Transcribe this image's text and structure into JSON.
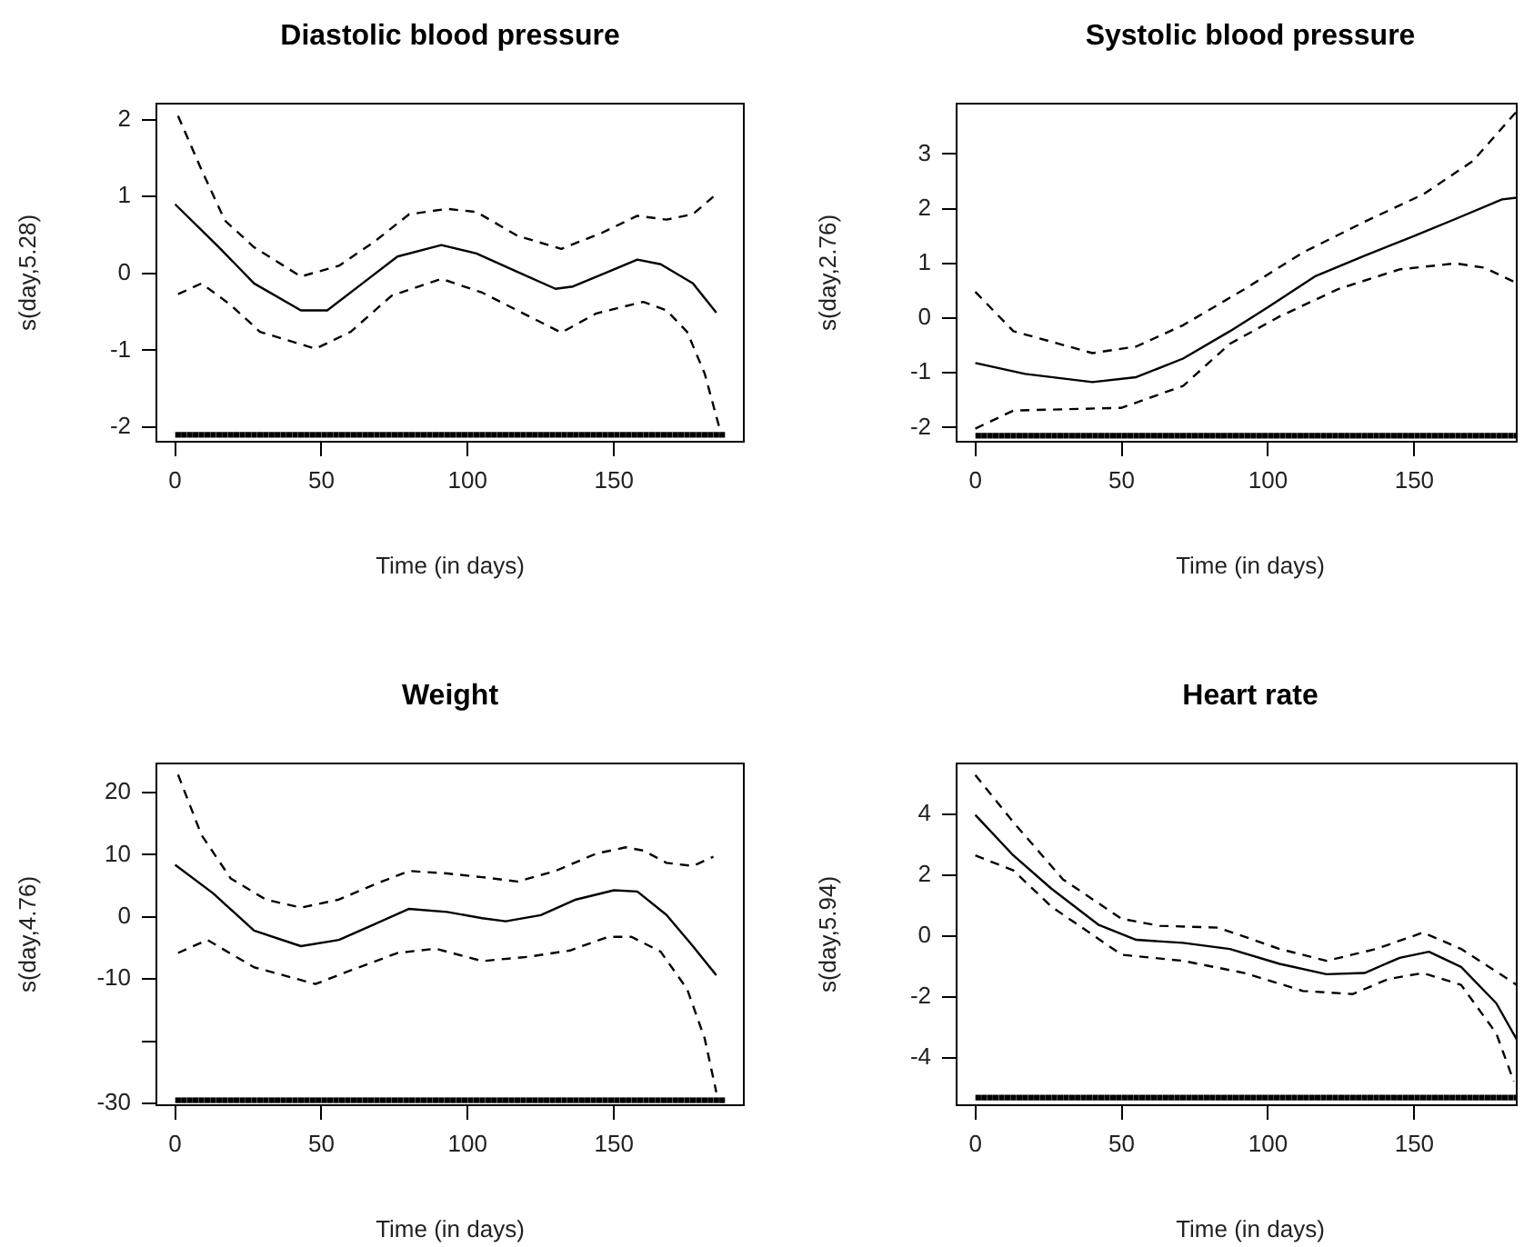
{
  "chart_data": [
    {
      "type": "line",
      "title": "Diastolic blood pressure",
      "xlabel": "Time (in days)",
      "ylabel": "s(day,5.28)",
      "xlim": [
        -6.4,
        194.4
      ],
      "xticks": [
        0,
        50,
        100,
        150
      ],
      "ylim": [
        -2.19,
        2.21
      ],
      "yticks": [
        -2,
        -1,
        0,
        1,
        2
      ],
      "grid": false,
      "legend": false,
      "series": [
        {
          "color": "#000000",
          "line_style": "solid",
          "x": [
            0,
            15,
            27,
            43,
            52,
            64,
            76,
            91,
            103,
            117,
            130,
            136,
            148,
            158,
            166,
            177,
            185
          ],
          "values": [
            0.9,
            0.34,
            -0.13,
            -0.48,
            -0.48,
            -0.13,
            0.22,
            0.37,
            0.26,
            0.02,
            -0.2,
            -0.17,
            0.02,
            0.18,
            0.12,
            -0.13,
            -0.51
          ]
        },
        {
          "color": "#000000",
          "line_style": "dashed",
          "x": [
            1,
            9,
            17,
            27,
            43,
            56,
            68,
            80,
            93,
            103,
            117,
            132,
            146,
            158,
            168,
            177,
            184
          ],
          "values": [
            2.05,
            1.35,
            0.69,
            0.34,
            -0.04,
            0.1,
            0.41,
            0.77,
            0.84,
            0.8,
            0.49,
            0.32,
            0.53,
            0.75,
            0.7,
            0.77,
            1.0
          ]
        },
        {
          "color": "#000000",
          "line_style": "dashed",
          "x": [
            1,
            9,
            19,
            29,
            48,
            60,
            74,
            91,
            105,
            119,
            132,
            144,
            160,
            168,
            175,
            181,
            186
          ],
          "values": [
            -0.27,
            -0.13,
            -0.41,
            -0.76,
            -0.98,
            -0.76,
            -0.29,
            -0.07,
            -0.25,
            -0.52,
            -0.77,
            -0.52,
            -0.37,
            -0.48,
            -0.76,
            -1.3,
            -2.0
          ]
        },
        {
          "type": "scatter",
          "color": "#000000",
          "x": [
            1,
            3,
            5,
            7,
            9,
            11,
            13,
            15,
            17,
            19,
            21,
            23,
            25,
            27,
            29,
            31,
            33,
            35,
            37,
            39,
            41,
            43,
            45,
            47,
            49,
            51,
            53,
            55,
            57,
            59,
            61,
            63,
            65,
            67,
            69,
            71,
            73,
            75,
            77,
            79,
            81,
            83,
            85,
            87,
            89,
            91,
            93,
            95,
            97,
            99,
            101,
            103,
            105,
            107,
            109,
            111,
            113,
            115,
            117,
            119,
            121,
            123,
            125,
            127,
            129,
            131,
            133,
            135,
            137,
            139,
            141,
            143,
            145,
            147,
            149,
            151,
            153,
            155,
            157,
            159,
            161,
            163,
            165,
            167,
            169,
            171,
            173,
            175,
            177,
            179,
            181,
            183,
            185,
            187
          ],
          "values": [
            -2.1,
            -2.1,
            -2.1,
            -2.1,
            -2.1,
            -2.1,
            -2.1,
            -2.1,
            -2.1,
            -2.1,
            -2.1,
            -2.1,
            -2.1,
            -2.1,
            -2.1,
            -2.1,
            -2.1,
            -2.1,
            -2.1,
            -2.1,
            -2.1,
            -2.1,
            -2.1,
            -2.1,
            -2.1,
            -2.1,
            -2.1,
            -2.1,
            -2.1,
            -2.1,
            -2.1,
            -2.1,
            -2.1,
            -2.1,
            -2.1,
            -2.1,
            -2.1,
            -2.1,
            -2.1,
            -2.1,
            -2.1,
            -2.1,
            -2.1,
            -2.1,
            -2.1,
            -2.1,
            -2.1,
            -2.1,
            -2.1,
            -2.1,
            -2.1,
            -2.1,
            -2.1,
            -2.1,
            -2.1,
            -2.1,
            -2.1,
            -2.1,
            -2.1,
            -2.1,
            -2.1,
            -2.1,
            -2.1,
            -2.1,
            -2.1,
            -2.1,
            -2.1,
            -2.1,
            -2.1,
            -2.1,
            -2.1,
            -2.1,
            -2.1,
            -2.1,
            -2.1,
            -2.1,
            -2.1,
            -2.1,
            -2.1,
            -2.1,
            -2.1,
            -2.1,
            -2.1,
            -2.1,
            -2.1,
            -2.1,
            -2.1,
            -2.1,
            -2.1,
            -2.1,
            -2.1,
            -2.1,
            -2.1,
            -2.1
          ]
        }
      ]
    },
    {
      "type": "line",
      "title": "Systolic blood pressure",
      "xlabel": "Time (in days)",
      "ylabel": "s(day,2.76)",
      "xlim": [
        -6.4,
        185
      ],
      "xticks": [
        0,
        50,
        100,
        150
      ],
      "ylim": [
        -2.26,
        3.92
      ],
      "yticks": [
        -2,
        -1,
        0,
        1,
        2,
        3
      ],
      "grid": false,
      "legend": false,
      "series": [
        {
          "color": "#000000",
          "line_style": "solid",
          "x": [
            0,
            17,
            40,
            55,
            71,
            87,
            100,
            116,
            133,
            149,
            164,
            180,
            185
          ],
          "values": [
            -0.82,
            -1.02,
            -1.17,
            -1.08,
            -0.74,
            -0.24,
            0.2,
            0.76,
            1.14,
            1.48,
            1.81,
            2.17,
            2.2
          ]
        },
        {
          "color": "#000000",
          "line_style": "dashed",
          "x": [
            0,
            13,
            40,
            55,
            71,
            92,
            112,
            133,
            153,
            170,
            185
          ],
          "values": [
            0.48,
            -0.24,
            -0.64,
            -0.52,
            -0.13,
            0.53,
            1.2,
            1.76,
            2.26,
            2.87,
            3.78
          ]
        },
        {
          "color": "#000000",
          "line_style": "dashed",
          "x": [
            0,
            13,
            50,
            71,
            87,
            104,
            124,
            145,
            164,
            174,
            185
          ],
          "values": [
            -2.02,
            -1.69,
            -1.64,
            -1.24,
            -0.47,
            0.03,
            0.53,
            0.89,
            1.0,
            0.92,
            0.64
          ]
        },
        {
          "type": "scatter",
          "color": "#000000",
          "x": [
            1,
            3,
            5,
            7,
            9,
            11,
            13,
            15,
            17,
            19,
            21,
            23,
            25,
            27,
            29,
            31,
            33,
            35,
            37,
            39,
            41,
            43,
            45,
            47,
            49,
            51,
            53,
            55,
            57,
            59,
            61,
            63,
            65,
            67,
            69,
            71,
            73,
            75,
            77,
            79,
            81,
            83,
            85,
            87,
            89,
            91,
            93,
            95,
            97,
            99,
            101,
            103,
            105,
            107,
            109,
            111,
            113,
            115,
            117,
            119,
            121,
            123,
            125,
            127,
            129,
            131,
            133,
            135,
            137,
            139,
            141,
            143,
            145,
            147,
            149,
            151,
            153,
            155,
            157,
            159,
            161,
            163,
            165,
            167,
            169,
            171,
            173,
            175,
            177,
            179,
            181,
            183,
            185
          ],
          "values": [
            -2.15,
            -2.15,
            -2.15,
            -2.15,
            -2.15,
            -2.15,
            -2.15,
            -2.15,
            -2.15,
            -2.15,
            -2.15,
            -2.15,
            -2.15,
            -2.15,
            -2.15,
            -2.15,
            -2.15,
            -2.15,
            -2.15,
            -2.15,
            -2.15,
            -2.15,
            -2.15,
            -2.15,
            -2.15,
            -2.15,
            -2.15,
            -2.15,
            -2.15,
            -2.15,
            -2.15,
            -2.15,
            -2.15,
            -2.15,
            -2.15,
            -2.15,
            -2.15,
            -2.15,
            -2.15,
            -2.15,
            -2.15,
            -2.15,
            -2.15,
            -2.15,
            -2.15,
            -2.15,
            -2.15,
            -2.15,
            -2.15,
            -2.15,
            -2.15,
            -2.15,
            -2.15,
            -2.15,
            -2.15,
            -2.15,
            -2.15,
            -2.15,
            -2.15,
            -2.15,
            -2.15,
            -2.15,
            -2.15,
            -2.15,
            -2.15,
            -2.15,
            -2.15,
            -2.15,
            -2.15,
            -2.15,
            -2.15,
            -2.15,
            -2.15,
            -2.15,
            -2.15,
            -2.15,
            -2.15,
            -2.15,
            -2.15,
            -2.15,
            -2.15,
            -2.15,
            -2.15,
            -2.15,
            -2.15,
            -2.15,
            -2.15,
            -2.15,
            -2.15,
            -2.15,
            -2.15,
            -2.15,
            -2.15
          ]
        }
      ]
    },
    {
      "type": "line",
      "title": "Weight",
      "xlabel": "Time (in days)",
      "ylabel": "s(day,4.76)",
      "xlim": [
        -6.4,
        194.4
      ],
      "xticks": [
        0,
        50,
        100,
        150
      ],
      "ylim": [
        -30.3,
        24.7
      ],
      "yticks": [
        -30,
        {
          "value": -20,
          "label": null
        },
        -10,
        0,
        10,
        20
      ],
      "grid": false,
      "legend": false,
      "series": [
        {
          "color": "#000000",
          "line_style": "solid",
          "x": [
            0,
            13,
            27,
            43,
            56,
            68,
            80,
            93,
            105,
            113,
            125,
            137,
            150,
            158,
            168,
            177,
            185
          ],
          "values": [
            8.4,
            3.8,
            -2.2,
            -4.7,
            -3.7,
            -1.2,
            1.3,
            0.8,
            -0.2,
            -0.7,
            0.3,
            2.8,
            4.3,
            4.1,
            0.3,
            -4.7,
            -9.4
          ]
        },
        {
          "color": "#000000",
          "line_style": "dashed",
          "x": [
            1,
            9,
            19,
            31,
            43,
            56,
            68,
            80,
            93,
            105,
            117,
            130,
            144,
            154,
            160,
            168,
            177,
            184
          ],
          "values": [
            22.9,
            13.2,
            6.2,
            2.8,
            1.5,
            2.8,
            5.2,
            7.4,
            7.0,
            6.4,
            5.7,
            7.4,
            10.2,
            11.2,
            10.7,
            8.7,
            8.2,
            9.7
          ]
        },
        {
          "color": "#000000",
          "line_style": "dashed",
          "x": [
            1,
            11,
            27,
            48,
            60,
            76,
            89,
            105,
            121,
            135,
            148,
            156,
            166,
            175,
            181,
            185
          ],
          "values": [
            -5.8,
            -3.7,
            -8.1,
            -10.8,
            -8.6,
            -5.8,
            -5.1,
            -7.1,
            -6.4,
            -5.4,
            -3.2,
            -3.2,
            -5.6,
            -11.6,
            -19.5,
            -28.2
          ]
        },
        {
          "type": "scatter",
          "color": "#000000",
          "x": [
            1,
            3,
            5,
            7,
            9,
            11,
            13,
            15,
            17,
            19,
            21,
            23,
            25,
            27,
            29,
            31,
            33,
            35,
            37,
            39,
            41,
            43,
            45,
            47,
            49,
            51,
            53,
            55,
            57,
            59,
            61,
            63,
            65,
            67,
            69,
            71,
            73,
            75,
            77,
            79,
            81,
            83,
            85,
            87,
            89,
            91,
            93,
            95,
            97,
            99,
            101,
            103,
            105,
            107,
            109,
            111,
            113,
            115,
            117,
            119,
            121,
            123,
            125,
            127,
            129,
            131,
            133,
            135,
            137,
            139,
            141,
            143,
            145,
            147,
            149,
            151,
            153,
            155,
            157,
            159,
            161,
            163,
            165,
            167,
            169,
            171,
            173,
            175,
            177,
            179,
            181,
            183,
            185,
            187
          ],
          "values": [
            -29.5,
            -29.5,
            -29.5,
            -29.5,
            -29.5,
            -29.5,
            -29.5,
            -29.5,
            -29.5,
            -29.5,
            -29.5,
            -29.5,
            -29.5,
            -29.5,
            -29.5,
            -29.5,
            -29.5,
            -29.5,
            -29.5,
            -29.5,
            -29.5,
            -29.5,
            -29.5,
            -29.5,
            -29.5,
            -29.5,
            -29.5,
            -29.5,
            -29.5,
            -29.5,
            -29.5,
            -29.5,
            -29.5,
            -29.5,
            -29.5,
            -29.5,
            -29.5,
            -29.5,
            -29.5,
            -29.5,
            -29.5,
            -29.5,
            -29.5,
            -29.5,
            -29.5,
            -29.5,
            -29.5,
            -29.5,
            -29.5,
            -29.5,
            -29.5,
            -29.5,
            -29.5,
            -29.5,
            -29.5,
            -29.5,
            -29.5,
            -29.5,
            -29.5,
            -29.5,
            -29.5,
            -29.5,
            -29.5,
            -29.5,
            -29.5,
            -29.5,
            -29.5,
            -29.5,
            -29.5,
            -29.5,
            -29.5,
            -29.5,
            -29.5,
            -29.5,
            -29.5,
            -29.5,
            -29.5,
            -29.5,
            -29.5,
            -29.5,
            -29.5,
            -29.5,
            -29.5,
            -29.5,
            -29.5,
            -29.5,
            -29.5,
            -29.5,
            -29.5,
            -29.5,
            -29.5,
            -29.5,
            -29.5,
            -29.5
          ]
        }
      ]
    },
    {
      "type": "line",
      "title": "Heart rate",
      "xlabel": "Time (in days)",
      "ylabel": "s(day,5.94)",
      "xlim": [
        -6.4,
        185
      ],
      "xticks": [
        0,
        50,
        100,
        150
      ],
      "ylim": [
        -5.55,
        5.67
      ],
      "yticks": [
        -4,
        -2,
        0,
        2,
        4
      ],
      "grid": false,
      "legend": false,
      "series": [
        {
          "color": "#000000",
          "line_style": "solid",
          "x": [
            0,
            13,
            26,
            42,
            55,
            71,
            87,
            104,
            120,
            133,
            145,
            155,
            166,
            178,
            185
          ],
          "values": [
            3.98,
            2.65,
            1.56,
            0.38,
            -0.12,
            -0.22,
            -0.42,
            -0.91,
            -1.25,
            -1.21,
            -0.71,
            -0.51,
            -1.01,
            -2.2,
            -3.39
          ]
        },
        {
          "color": "#000000",
          "line_style": "dashed",
          "x": [
            0,
            13,
            30,
            50,
            63,
            83,
            104,
            120,
            137,
            153,
            166,
            182,
            185
          ],
          "values": [
            5.29,
            3.74,
            1.86,
            0.57,
            0.34,
            0.28,
            -0.42,
            -0.81,
            -0.42,
            0.12,
            -0.42,
            -1.41,
            -1.6
          ]
        },
        {
          "color": "#000000",
          "line_style": "dashed",
          "x": [
            0,
            13,
            26,
            50,
            71,
            92,
            112,
            129,
            141,
            153,
            166,
            178,
            184
          ],
          "values": [
            2.65,
            2.16,
            0.97,
            -0.61,
            -0.81,
            -1.21,
            -1.8,
            -1.9,
            -1.41,
            -1.21,
            -1.6,
            -3.19,
            -4.77
          ]
        },
        {
          "type": "scatter",
          "color": "#000000",
          "x": [
            1,
            3,
            5,
            7,
            9,
            11,
            13,
            15,
            17,
            19,
            21,
            23,
            25,
            27,
            29,
            31,
            33,
            35,
            37,
            39,
            41,
            43,
            45,
            47,
            49,
            51,
            53,
            55,
            57,
            59,
            61,
            63,
            65,
            67,
            69,
            71,
            73,
            75,
            77,
            79,
            81,
            83,
            85,
            87,
            89,
            91,
            93,
            95,
            97,
            99,
            101,
            103,
            105,
            107,
            109,
            111,
            113,
            115,
            117,
            119,
            121,
            123,
            125,
            127,
            129,
            131,
            133,
            135,
            137,
            139,
            141,
            143,
            145,
            147,
            149,
            151,
            153,
            155,
            157,
            159,
            161,
            163,
            165,
            167,
            169,
            171,
            173,
            175,
            177,
            179,
            181,
            183,
            185
          ],
          "values": [
            -5.3,
            -5.3,
            -5.3,
            -5.3,
            -5.3,
            -5.3,
            -5.3,
            -5.3,
            -5.3,
            -5.3,
            -5.3,
            -5.3,
            -5.3,
            -5.3,
            -5.3,
            -5.3,
            -5.3,
            -5.3,
            -5.3,
            -5.3,
            -5.3,
            -5.3,
            -5.3,
            -5.3,
            -5.3,
            -5.3,
            -5.3,
            -5.3,
            -5.3,
            -5.3,
            -5.3,
            -5.3,
            -5.3,
            -5.3,
            -5.3,
            -5.3,
            -5.3,
            -5.3,
            -5.3,
            -5.3,
            -5.3,
            -5.3,
            -5.3,
            -5.3,
            -5.3,
            -5.3,
            -5.3,
            -5.3,
            -5.3,
            -5.3,
            -5.3,
            -5.3,
            -5.3,
            -5.3,
            -5.3,
            -5.3,
            -5.3,
            -5.3,
            -5.3,
            -5.3,
            -5.3,
            -5.3,
            -5.3,
            -5.3,
            -5.3,
            -5.3,
            -5.3,
            -5.3,
            -5.3,
            -5.3,
            -5.3,
            -5.3,
            -5.3,
            -5.3,
            -5.3,
            -5.3,
            -5.3,
            -5.3,
            -5.3,
            -5.3,
            -5.3,
            -5.3,
            -5.3,
            -5.3,
            -5.3,
            -5.3,
            -5.3,
            -5.3,
            -5.3,
            -5.3,
            -5.3,
            -5.3,
            -5.3
          ]
        }
      ]
    }
  ]
}
